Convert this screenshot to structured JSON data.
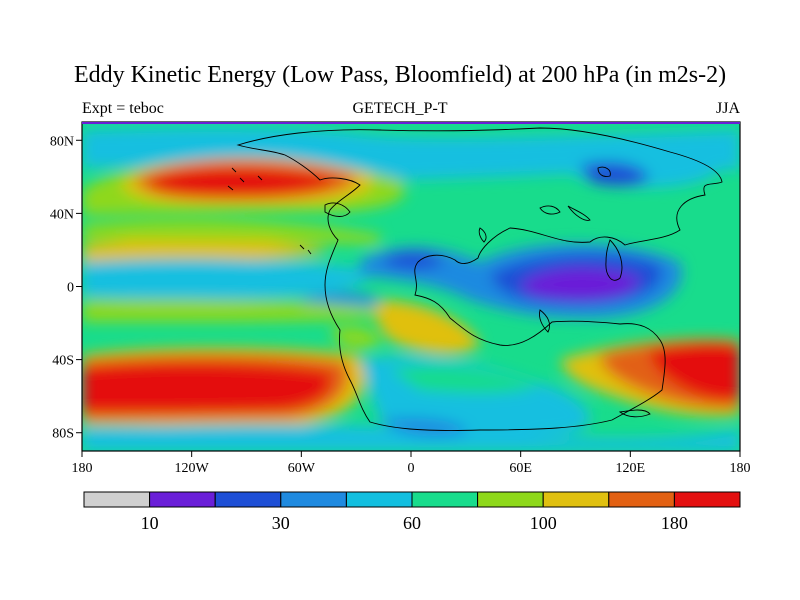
{
  "title": "Eddy Kinetic Energy (Low Pass, Bloomfield) at 200 hPa (in m2s-2)",
  "subtitle_left": "Expt = teboc",
  "subtitle_center": "GETECH_P-T",
  "subtitle_right": "JJA",
  "map": {
    "projection": "cylindrical-equidistant",
    "lon_range": [
      -180,
      180
    ],
    "lat_range": [
      -90,
      90
    ],
    "lon_ticks": [
      {
        "value": -180,
        "label": "180"
      },
      {
        "value": -120,
        "label": "120W"
      },
      {
        "value": -60,
        "label": "60W"
      },
      {
        "value": 0,
        "label": "0"
      },
      {
        "value": 60,
        "label": "60E"
      },
      {
        "value": 120,
        "label": "120E"
      },
      {
        "value": 180,
        "label": "180"
      }
    ],
    "lat_ticks": [
      {
        "value": 80,
        "label": "80N"
      },
      {
        "value": 40,
        "label": "40N"
      },
      {
        "value": 0,
        "label": "0"
      },
      {
        "value": -40,
        "label": "40S"
      },
      {
        "value": -80,
        "label": "80S"
      }
    ]
  },
  "colorbar": {
    "colors": [
      "#d0d0d0",
      "#6a1fd8",
      "#1e4fd6",
      "#1f8ae0",
      "#12bfe0",
      "#18dc8c",
      "#8ed81a",
      "#e0c010",
      "#e26012",
      "#e41010"
    ],
    "labels": [
      {
        "boundary": 1,
        "text": "10"
      },
      {
        "boundary": 3,
        "text": "30"
      },
      {
        "boundary": 5,
        "text": "60"
      },
      {
        "boundary": 7,
        "text": "100"
      },
      {
        "boundary": 9,
        "text": "180"
      }
    ]
  }
}
